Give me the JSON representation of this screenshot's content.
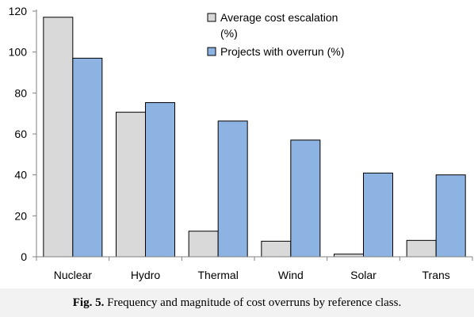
{
  "chart_data": {
    "type": "bar",
    "categories": [
      "Nuclear",
      "Hydro",
      "Thermal",
      "Wind",
      "Solar",
      "Trans"
    ],
    "series": [
      {
        "name": "Average cost escalation (%)",
        "legend_lines": [
          "Average cost escalation",
          "(%)"
        ],
        "color": "#d9d9d9",
        "values": [
          117,
          70.6,
          12.5,
          7.6,
          1.3,
          8
        ]
      },
      {
        "name": "Projects with overrun (%)",
        "legend_lines": [
          "Projects with overrun (%)"
        ],
        "color": "#8db3e2",
        "values": [
          97,
          75.3,
          66.3,
          57,
          40.9,
          40
        ]
      }
    ],
    "ylim": [
      0,
      120
    ],
    "yticks": [
      0,
      20,
      40,
      60,
      80,
      100,
      120
    ],
    "grid": false,
    "legend_position": "top-right"
  },
  "caption": {
    "label": "Fig. 5.",
    "text": "Frequency and magnitude of cost overruns by reference class."
  }
}
